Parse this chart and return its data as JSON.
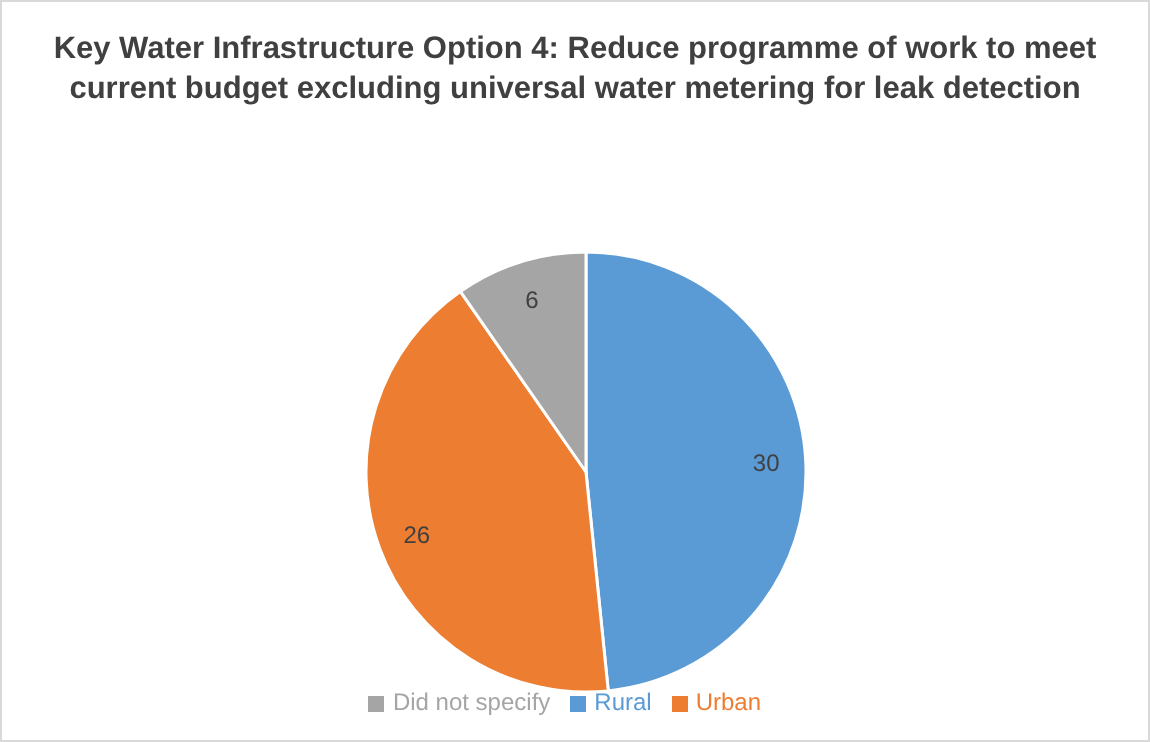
{
  "chart_data": {
    "type": "pie",
    "title": "Key Water Infrastructure Option 4: Reduce programme of work to meet current budget excluding universal water metering for leak detection",
    "categories": [
      "Rural",
      "Urban",
      "Did not specify"
    ],
    "values": [
      30,
      26,
      6
    ],
    "colors": [
      "#5b9bd5",
      "#ed7d31",
      "#a5a5a5"
    ],
    "data_labels": true,
    "legend": "bottom"
  }
}
